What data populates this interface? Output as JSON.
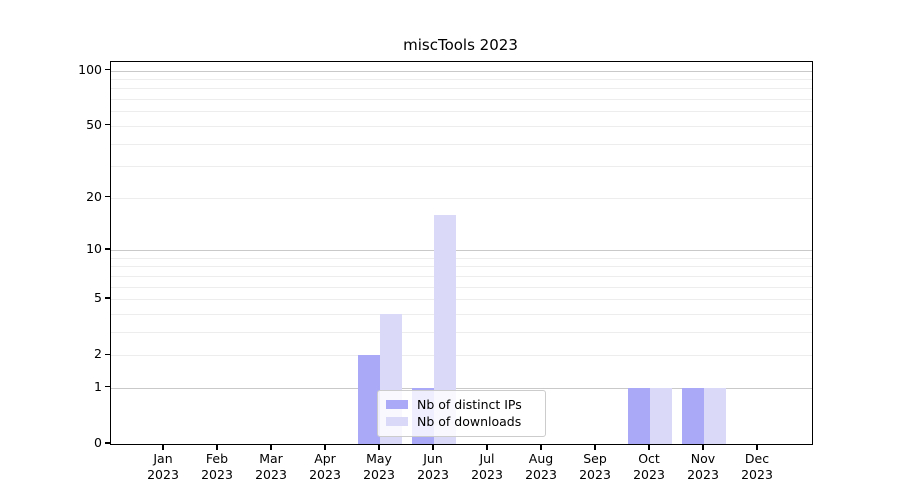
{
  "chart_data": {
    "type": "bar",
    "title": "miscTools 2023",
    "categories": [
      "Jan",
      "Feb",
      "Mar",
      "Apr",
      "May",
      "Jun",
      "Jul",
      "Aug",
      "Sep",
      "Oct",
      "Nov",
      "Dec"
    ],
    "year_label": "2023",
    "series": [
      {
        "name": "Nb of distinct IPs",
        "color": "#a9a9f8",
        "values": [
          0,
          0,
          0,
          0,
          2,
          1,
          0,
          0,
          0,
          1,
          1,
          0
        ]
      },
      {
        "name": "Nb of downloads",
        "color": "#dadaf8",
        "values": [
          0,
          0,
          0,
          0,
          4,
          16,
          0,
          0,
          0,
          1,
          1,
          0
        ]
      }
    ],
    "y_axis": {
      "scale": "log1p",
      "tick_labels": [
        "100",
        "50",
        "20",
        "10",
        "5",
        "2",
        "1",
        "0"
      ],
      "ticks": [
        0,
        1,
        2,
        5,
        10,
        20,
        50,
        100
      ],
      "major_gridlines": [
        1,
        10,
        100
      ],
      "minor_gridlines": [
        2,
        3,
        4,
        5,
        6,
        7,
        8,
        9,
        20,
        30,
        40,
        50,
        60,
        70,
        80,
        90
      ],
      "range_max": 112
    },
    "legend": {
      "entries": [
        "Nb of distinct IPs",
        "Nb of downloads"
      ]
    },
    "style_colors": {
      "major_grid": "#c9c9c9",
      "minor_grid": "#ededed",
      "spine": "#000000",
      "text": "#000000"
    }
  }
}
